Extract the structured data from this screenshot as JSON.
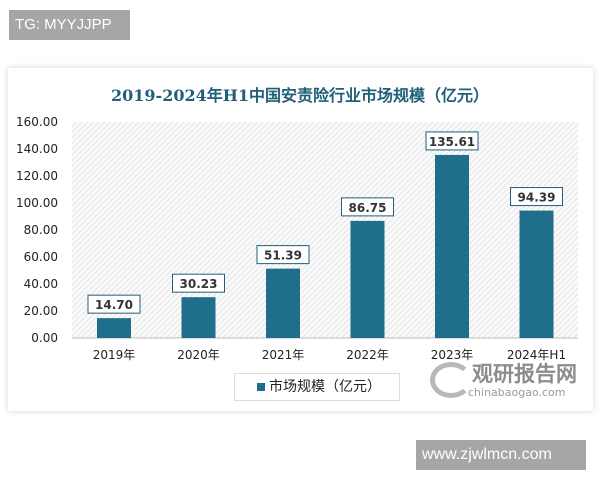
{
  "watermarks": {
    "top_left": "TG: MYYJJPP",
    "bottom_right": "www.zjwlmcn.com",
    "logo_cn": "观研报告网",
    "logo_en": "chinabaogao.com"
  },
  "chart_data": {
    "type": "bar",
    "title": "2019-2024年H1中国安责险行业市场规模（亿元）",
    "categories": [
      "2019年",
      "2020年",
      "2021年",
      "2022年",
      "2023年",
      "2024年H1"
    ],
    "series": [
      {
        "name": "市场规模（亿元）",
        "values": [
          14.7,
          30.23,
          51.39,
          86.75,
          135.61,
          94.39
        ],
        "color": "#1f6e8c"
      }
    ],
    "data_labels": [
      "14.70",
      "30.23",
      "51.39",
      "86.75",
      "135.61",
      "94.39"
    ],
    "ylim": [
      0,
      160
    ],
    "yticks": [
      "0.00",
      "20.00",
      "40.00",
      "60.00",
      "80.00",
      "100.00",
      "120.00",
      "140.00",
      "160.00"
    ],
    "legend": "bottom",
    "grid": false,
    "background": "hatched"
  }
}
